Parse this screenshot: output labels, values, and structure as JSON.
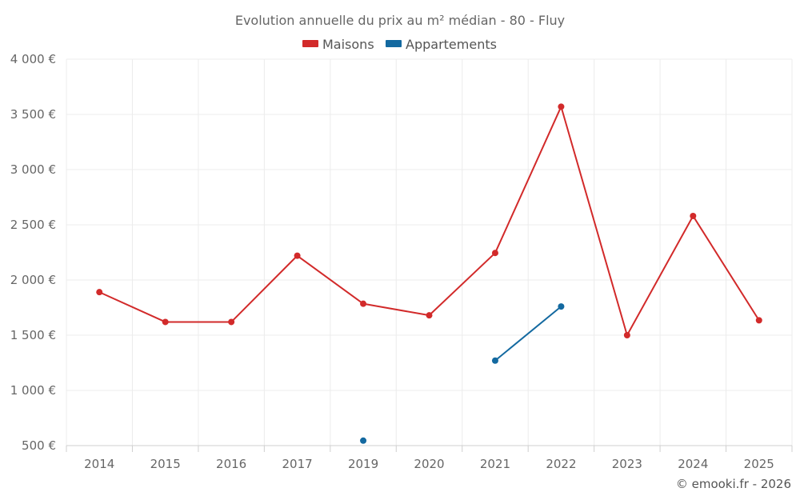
{
  "chart_data": {
    "type": "line",
    "title": "Evolution annuelle du prix au m² médian - 80 - Fluy",
    "categories": [
      "2014",
      "2015",
      "2016",
      "2017",
      "2019",
      "2020",
      "2021",
      "2022",
      "2023",
      "2024",
      "2025"
    ],
    "series": [
      {
        "name": "Maisons",
        "color": "#d22a2a",
        "values": [
          1890,
          1620,
          1620,
          2220,
          1785,
          1680,
          2245,
          3570,
          1500,
          2580,
          1635
        ]
      },
      {
        "name": "Appartements",
        "color": "#1369a0",
        "values": [
          null,
          null,
          null,
          null,
          545,
          null,
          1270,
          1760,
          null,
          null,
          null
        ]
      }
    ],
    "ylim": [
      500,
      4000
    ],
    "yticks": [
      500,
      1000,
      1500,
      2000,
      2500,
      3000,
      3500,
      4000
    ],
    "ytick_labels": [
      "500 €",
      "1 000 €",
      "1 500 €",
      "2 000 €",
      "2 500 €",
      "3 000 €",
      "3 500 €",
      "4 000 €"
    ],
    "xlabel": "",
    "ylabel": "",
    "grid": true,
    "legend": "top-center"
  },
  "credit": "© emooki.fr - 2026"
}
